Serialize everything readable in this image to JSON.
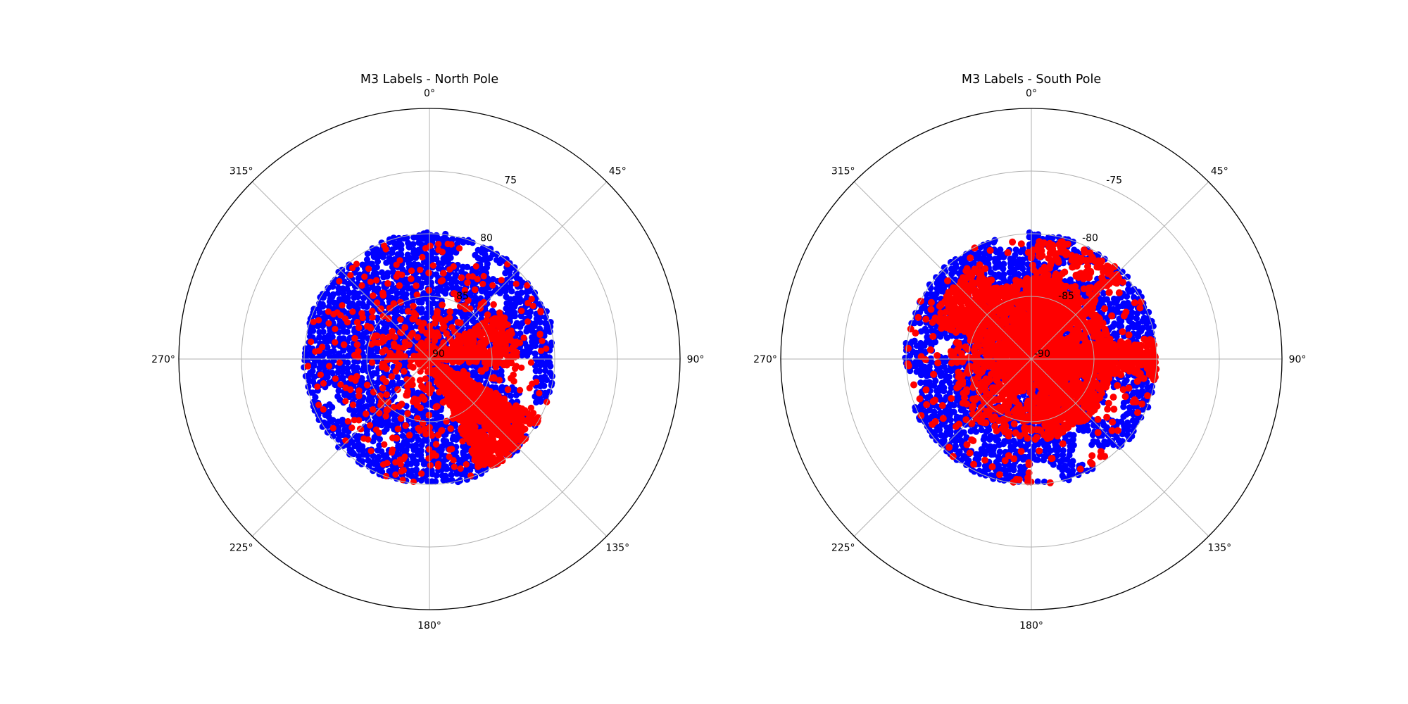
{
  "chart_data": [
    {
      "type": "scatter",
      "projection": "polar",
      "title": "M3 Labels - North Pole",
      "theta_direction": "clockwise",
      "theta_zero": "top",
      "theta_tick_labels": [
        "0°",
        "45°",
        "90°",
        "135°",
        "180°",
        "225°",
        "270°",
        "315°"
      ],
      "r_axis": "latitude",
      "r_range": [
        90,
        70
      ],
      "r_ticks": [
        75,
        80,
        85,
        90
      ],
      "r_tick_labels": [
        "75",
        "80",
        "85",
        "90"
      ],
      "data_extent_latitude": 80,
      "grid": true,
      "series": [
        {
          "color": "#0000ff",
          "coverage": "dense fill from 90 to 80 latitude, all longitudes, with scattered gaps"
        },
        {
          "color": "#ff0000",
          "coverage": "clusters near 85-90 latitude and a dense band along longitude 120-150 reaching latitude 80"
        }
      ]
    },
    {
      "type": "scatter",
      "projection": "polar",
      "title": "M3 Labels - South Pole",
      "theta_direction": "clockwise",
      "theta_zero": "top",
      "theta_tick_labels": [
        "0°",
        "45°",
        "90°",
        "135°",
        "180°",
        "225°",
        "270°",
        "315°"
      ],
      "r_axis": "latitude",
      "r_range": [
        -90,
        -70
      ],
      "r_ticks": [
        -75,
        -80,
        -85,
        -90
      ],
      "r_tick_labels": [
        "-75",
        "-80",
        "-85",
        "-90"
      ],
      "data_extent_latitude": -80,
      "grid": true,
      "series": [
        {
          "color": "#0000ff",
          "coverage": "dense fill from -90 to -80 latitude, all longitudes, gaps toward 90-180"
        },
        {
          "color": "#ff0000",
          "coverage": "dense central blob from -90 to about -84 latitude, streaks toward 0-45 and 90"
        }
      ]
    }
  ]
}
